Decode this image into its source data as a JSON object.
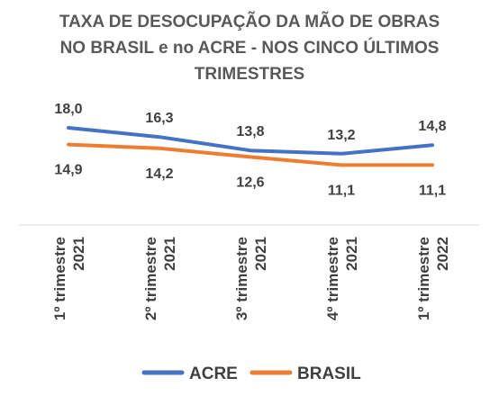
{
  "chart_data": {
    "type": "line",
    "title_lines": [
      "TAXA DE DESOCUPAÇÃO DA MÃO DE OBRAS",
      "NO BRASIL e no ACRE - NOS CINCO ÚLTIMOS",
      "TRIMESTRES"
    ],
    "categories": [
      [
        "1º trimestre",
        "2021"
      ],
      [
        "2º trimestre",
        "2021"
      ],
      [
        "3º trimestre",
        "2021"
      ],
      [
        "4º trimestre",
        "2021"
      ],
      [
        "1º trimestre",
        "2022"
      ]
    ],
    "series": [
      {
        "name": "ACRE",
        "color": "#4472C4",
        "values": [
          18.0,
          16.3,
          13.8,
          13.2,
          14.8
        ],
        "labels": [
          "18,0",
          "16,3",
          "13,8",
          "13,2",
          "14,8"
        ],
        "label_position": "above"
      },
      {
        "name": "BRASIL",
        "color": "#ED7D31",
        "values": [
          14.9,
          14.2,
          12.6,
          11.1,
          11.1
        ],
        "labels": [
          "14,9",
          "14,2",
          "12,6",
          "11,1",
          "11,1"
        ],
        "label_position": "below"
      }
    ],
    "ylim": [
      0,
      30
    ],
    "grid": false,
    "legend": "bottom"
  }
}
